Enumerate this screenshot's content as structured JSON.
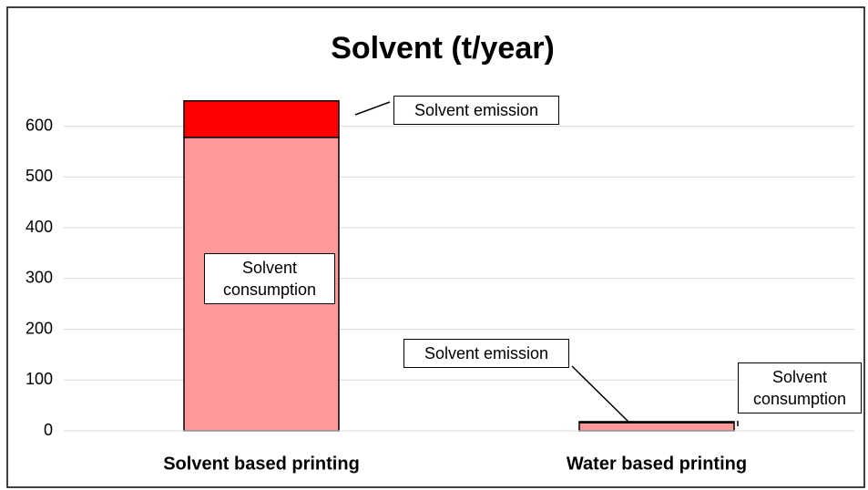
{
  "chart_data": {
    "type": "stacked_bar",
    "title": "Solvent (t/year)",
    "categories": [
      "Solvent based printing",
      "Water based printing"
    ],
    "series": [
      {
        "name": "Solvent consumption",
        "color": "#ff9999",
        "values": [
          578,
          16
        ]
      },
      {
        "name": "Solvent emission",
        "color": "#ff0000",
        "values": [
          72,
          2
        ]
      }
    ],
    "ylim": [
      0,
      680
    ],
    "yticks": [
      0,
      100,
      200,
      300,
      400,
      500,
      600
    ],
    "grid": true
  }
}
